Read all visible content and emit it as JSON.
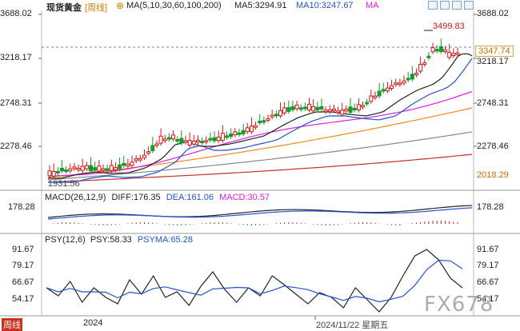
{
  "header": {
    "title": "现货黄金",
    "period": "[周线]",
    "ma_label": "MA(5,10,30,60,100,200)",
    "ma5": "MA5:3294.91",
    "ma10": "MA10:3247.67",
    "ma_more": "MA"
  },
  "price_axis": {
    "left": [
      "3688.02",
      "3218.17",
      "2748.31",
      "2278.46",
      "1931.56"
    ],
    "right": [
      "3688.02",
      "3218.17",
      "2748.31",
      "2278.46",
      "2018.29"
    ],
    "current": "3347.74",
    "high": "3499.83"
  },
  "macd": {
    "label": "MACD(26,12,9)",
    "diff": "DIFF:176.35",
    "dea": "DEA:161.06",
    "macd": "MACD:30.57",
    "left_tick": "178.28",
    "right_tick": "178.28"
  },
  "psy": {
    "label": "PSY(12,6)",
    "psy": "PSY:58.33",
    "psyma": "PSYMA:65.28",
    "left_ticks": [
      "91.67",
      "79.17",
      "66.67",
      "54.17"
    ],
    "right_ticks": [
      "91.67",
      "79.17",
      "66.67",
      "54.17"
    ]
  },
  "x_axis": {
    "year": "2024",
    "date": "2024/11/22 星期五",
    "corner": "周线"
  },
  "watermark": "FX678",
  "colors": {
    "ma5": "#222222",
    "ma10": "#2255cc",
    "ma30": "#e020e0",
    "ma60": "#f08c1a",
    "ma100": "#888888",
    "ma200": "#c03030",
    "up": "#d01818",
    "down": "#179a2a",
    "accent": "#d9a54a"
  },
  "toolbar_icons": [
    "grid-icon",
    "scale-icon",
    "zoom-in-icon",
    "zoom-out-icon"
  ]
}
